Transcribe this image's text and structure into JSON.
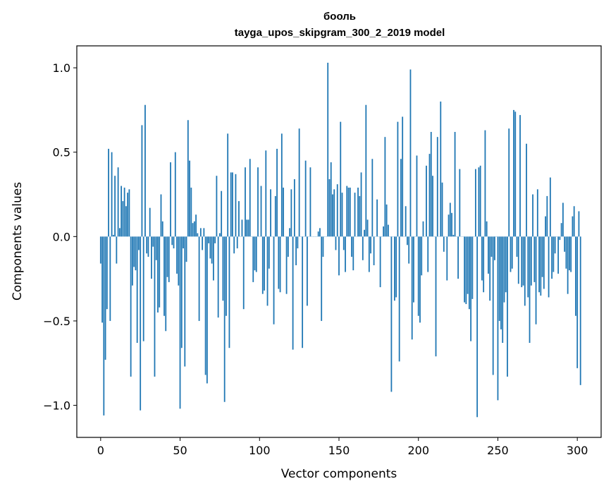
{
  "chart_data": {
    "type": "bar",
    "title_line1": "бооль",
    "title_line2": "tayga_upos_skipgram_300_2_2019 model",
    "xlabel": "Vector components",
    "ylabel": "Components values",
    "xlim": [
      -15,
      315
    ],
    "ylim": [
      -1.19,
      1.13
    ],
    "xticks": [
      0,
      50,
      100,
      150,
      200,
      250,
      300
    ],
    "xtick_labels": [
      "0",
      "50",
      "100",
      "150",
      "200",
      "250",
      "300"
    ],
    "yticks": [
      -1.0,
      -0.5,
      0.0,
      0.5,
      1.0
    ],
    "ytick_labels": [
      "−1.0",
      "−0.5",
      "0.0",
      "0.5",
      "1.0"
    ],
    "grid": false,
    "bar_color": "#1f77b4",
    "values": [
      -0.16,
      -0.51,
      -1.06,
      -0.73,
      -0.43,
      0.52,
      -0.5,
      0.5,
      0.01,
      0.36,
      -0.16,
      0.41,
      0.05,
      0.3,
      0.21,
      0.29,
      0.18,
      0.26,
      0.28,
      -0.83,
      -0.29,
      -0.18,
      -0.2,
      -0.63,
      -0.08,
      -1.03,
      0.66,
      -0.62,
      0.78,
      -0.1,
      -0.12,
      0.17,
      -0.25,
      -0.06,
      -0.83,
      -0.14,
      -0.45,
      -0.42,
      0.25,
      0.09,
      -0.47,
      -0.56,
      -0.24,
      -0.27,
      0.44,
      -0.05,
      -0.07,
      0.5,
      -0.22,
      -0.29,
      -1.02,
      -0.66,
      -0.07,
      -0.77,
      -0.15,
      0.69,
      0.45,
      0.29,
      0.08,
      0.09,
      0.13,
      0.02,
      -0.5,
      0.05,
      -0.08,
      0.05,
      -0.82,
      -0.87,
      -0.04,
      -0.13,
      -0.16,
      -0.26,
      -0.04,
      0.36,
      -0.48,
      0.02,
      0.27,
      -0.38,
      -0.98,
      -0.47,
      0.61,
      -0.66,
      0.38,
      0.38,
      -0.1,
      0.37,
      -0.07,
      0.21,
      0.0,
      0.1,
      -0.43,
      0.41,
      0.1,
      0.1,
      0.46,
      0.0,
      -0.27,
      -0.2,
      -0.21,
      0.41,
      0.0,
      0.3,
      -0.34,
      -0.32,
      0.51,
      -0.41,
      -0.19,
      0.28,
      0.0,
      -0.52,
      0.24,
      0.52,
      -0.31,
      -0.33,
      0.61,
      0.29,
      0.0,
      -0.34,
      -0.12,
      0.05,
      0.28,
      -0.67,
      0.34,
      -0.17,
      -0.07,
      0.64,
      0.0,
      -0.66,
      0.0,
      0.45,
      -0.41,
      0.0,
      0.41,
      0.0,
      0.0,
      0.0,
      0.0,
      0.03,
      0.05,
      -0.5,
      -0.12,
      0.0,
      0.0,
      1.03,
      0.34,
      0.44,
      0.25,
      0.28,
      -0.08,
      0.31,
      -0.23,
      0.68,
      0.26,
      -0.08,
      -0.21,
      0.3,
      0.29,
      0.29,
      -0.12,
      -0.2,
      0.26,
      0.0,
      0.29,
      0.24,
      0.38,
      -0.14,
      0.04,
      0.78,
      0.1,
      -0.21,
      -0.1,
      0.46,
      -0.17,
      0.0,
      0.22,
      0.0,
      -0.3,
      0.0,
      0.06,
      0.59,
      0.19,
      0.07,
      0.0,
      -0.92,
      0.0,
      -0.38,
      -0.36,
      0.68,
      -0.74,
      0.46,
      0.71,
      0.0,
      0.18,
      -0.05,
      -0.16,
      0.99,
      -0.61,
      -0.39,
      0.0,
      0.48,
      -0.47,
      -0.51,
      -0.23,
      0.09,
      0.0,
      0.42,
      -0.21,
      0.49,
      0.62,
      0.36,
      0.0,
      -0.71,
      0.59,
      0.0,
      0.8,
      0.32,
      -0.09,
      0.0,
      -0.26,
      0.13,
      0.2,
      0.14,
      0.01,
      0.62,
      0.0,
      -0.25,
      0.4,
      0.0,
      0.0,
      -0.39,
      -0.4,
      -0.34,
      -0.43,
      -0.62,
      -0.37,
      0.0,
      0.4,
      -1.07,
      0.41,
      0.42,
      -0.26,
      -0.33,
      0.63,
      0.09,
      -0.22,
      -0.38,
      -0.12,
      -0.82,
      -0.14,
      0.0,
      -0.97,
      -0.5,
      -0.55,
      -0.63,
      -0.39,
      -0.33,
      -0.83,
      0.64,
      -0.21,
      -0.19,
      0.75,
      0.74,
      -0.12,
      -0.28,
      0.72,
      -0.3,
      -0.29,
      -0.41,
      0.55,
      -0.36,
      -0.63,
      -0.29,
      0.25,
      -0.27,
      -0.52,
      0.28,
      -0.33,
      -0.35,
      -0.24,
      -0.31,
      0.12,
      0.24,
      -0.36,
      0.35,
      -0.25,
      -0.21,
      -0.1,
      0.0,
      -0.22,
      -0.02,
      0.08,
      0.2,
      -0.09,
      -0.19,
      -0.34,
      -0.2,
      -0.21,
      0.12,
      0.18,
      -0.47,
      -0.78,
      0.15,
      -0.88
    ]
  }
}
